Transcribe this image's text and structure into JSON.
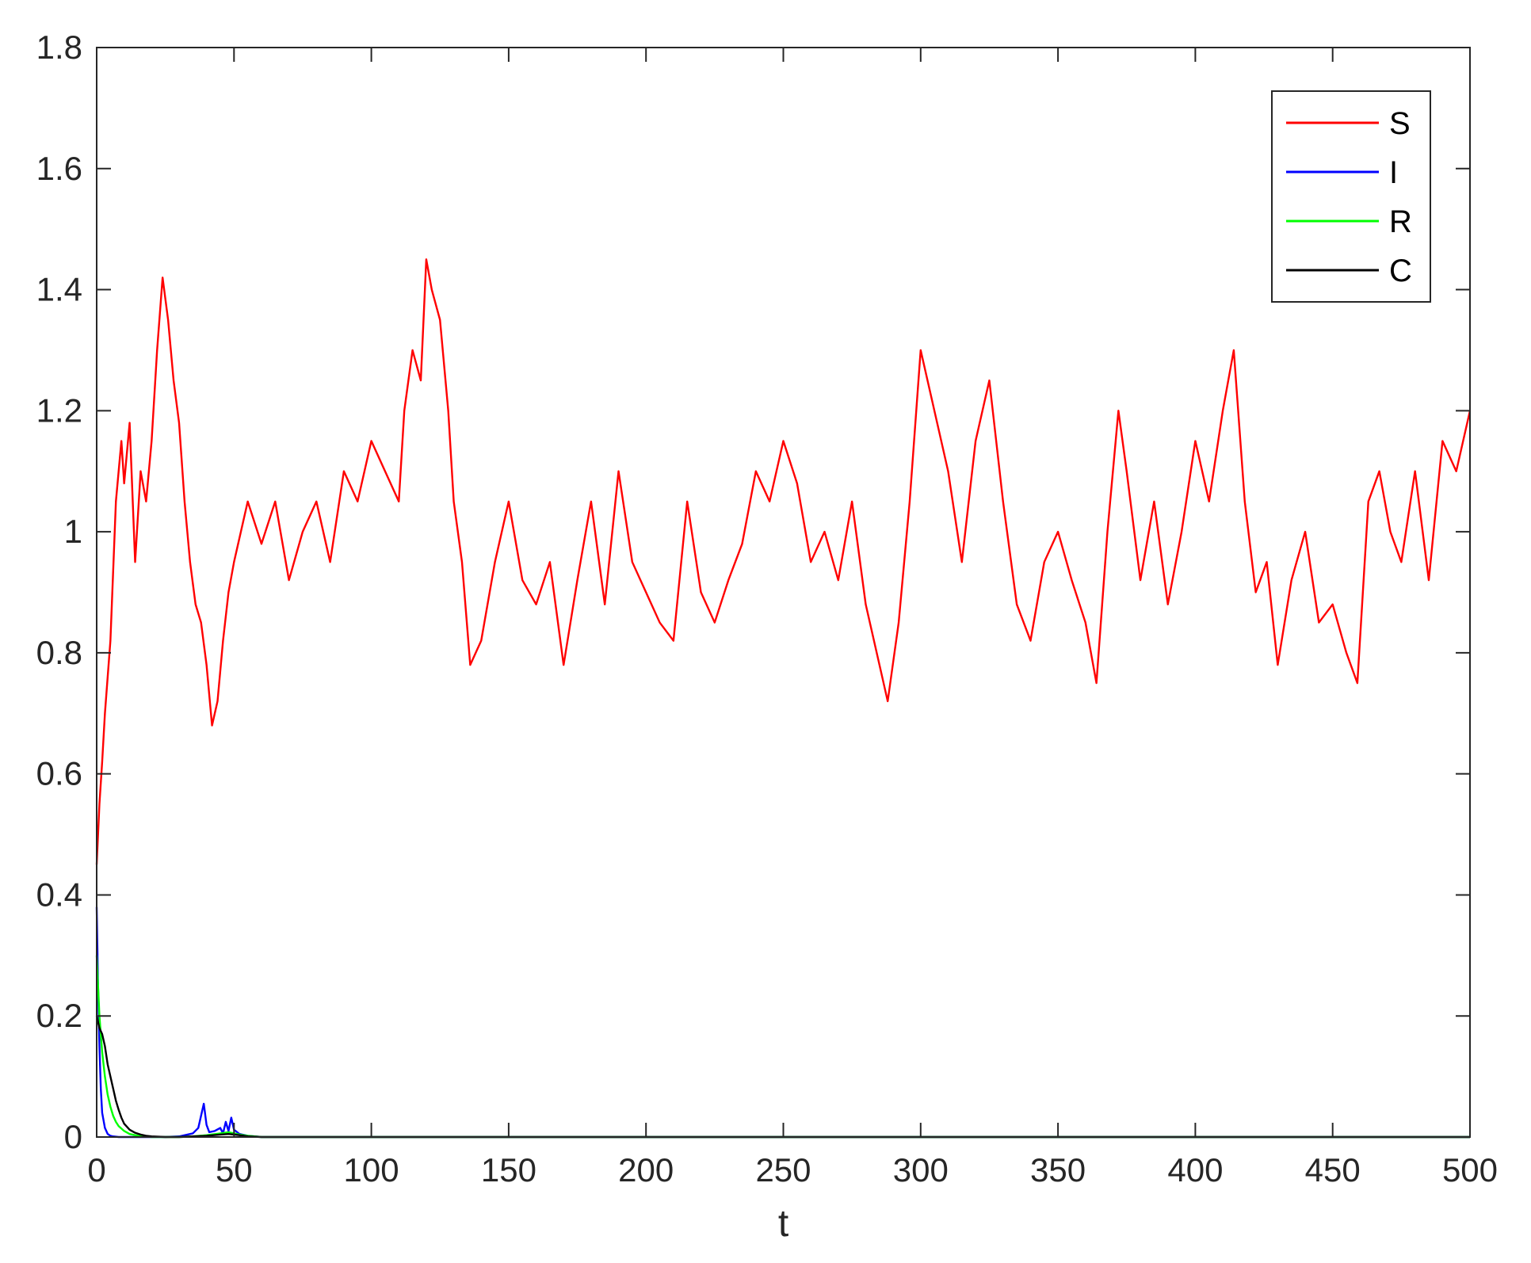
{
  "chart_data": {
    "type": "line",
    "title": "",
    "xlabel": "t",
    "ylabel": "",
    "xlim": [
      0,
      500
    ],
    "ylim": [
      0,
      1.8
    ],
    "xticks": [
      0,
      50,
      100,
      150,
      200,
      250,
      300,
      350,
      400,
      450,
      500
    ],
    "yticks": [
      0,
      0.2,
      0.4,
      0.6,
      0.8,
      1,
      1.2,
      1.4,
      1.6,
      1.8
    ],
    "xtick_labels": [
      "0",
      "50",
      "100",
      "150",
      "200",
      "250",
      "300",
      "350",
      "400",
      "450",
      "500"
    ],
    "ytick_labels": [
      "0",
      "0.2",
      "0.4",
      "0.6",
      "0.8",
      "1",
      "1.2",
      "1.4",
      "1.6",
      "1.8"
    ],
    "grid": false,
    "legend_position": "top-right",
    "series": [
      {
        "name": "S",
        "color": "#ff0000",
        "x": [
          0,
          1,
          2,
          3,
          5,
          7,
          9,
          10,
          12,
          14,
          16,
          18,
          20,
          22,
          24,
          26,
          28,
          30,
          32,
          34,
          36,
          38,
          40,
          42,
          44,
          46,
          48,
          50,
          55,
          60,
          65,
          70,
          75,
          80,
          85,
          90,
          95,
          100,
          105,
          110,
          112,
          115,
          118,
          120,
          122,
          125,
          128,
          130,
          133,
          136,
          140,
          145,
          150,
          155,
          160,
          165,
          170,
          175,
          180,
          185,
          190,
          195,
          200,
          205,
          210,
          215,
          220,
          225,
          230,
          235,
          240,
          245,
          250,
          255,
          260,
          265,
          270,
          275,
          280,
          285,
          288,
          292,
          296,
          300,
          305,
          310,
          315,
          320,
          325,
          330,
          335,
          340,
          345,
          350,
          355,
          360,
          364,
          368,
          372,
          375,
          380,
          385,
          390,
          395,
          400,
          405,
          410,
          414,
          418,
          422,
          426,
          430,
          435,
          440,
          445,
          450,
          455,
          459,
          463,
          467,
          471,
          475,
          480,
          485,
          490,
          495,
          500
        ],
        "y": [
          0.45,
          0.55,
          0.62,
          0.7,
          0.82,
          1.05,
          1.15,
          1.08,
          1.18,
          0.95,
          1.1,
          1.05,
          1.15,
          1.3,
          1.42,
          1.35,
          1.25,
          1.18,
          1.05,
          0.95,
          0.88,
          0.85,
          0.78,
          0.68,
          0.72,
          0.82,
          0.9,
          0.95,
          1.05,
          0.98,
          1.05,
          0.92,
          1.0,
          1.05,
          0.95,
          1.1,
          1.05,
          1.15,
          1.1,
          1.05,
          1.2,
          1.3,
          1.25,
          1.45,
          1.4,
          1.35,
          1.2,
          1.05,
          0.95,
          0.78,
          0.82,
          0.95,
          1.05,
          0.92,
          0.88,
          0.95,
          0.78,
          0.92,
          1.05,
          0.88,
          1.1,
          0.95,
          0.9,
          0.85,
          0.82,
          1.05,
          0.9,
          0.85,
          0.92,
          0.98,
          1.1,
          1.05,
          1.15,
          1.08,
          0.95,
          1.0,
          0.92,
          1.05,
          0.88,
          0.78,
          0.72,
          0.85,
          1.05,
          1.3,
          1.2,
          1.1,
          0.95,
          1.15,
          1.25,
          1.05,
          0.88,
          0.82,
          0.95,
          1.0,
          0.92,
          0.85,
          0.75,
          1.0,
          1.2,
          1.1,
          0.92,
          1.05,
          0.88,
          1.0,
          1.15,
          1.05,
          1.2,
          1.3,
          1.05,
          0.9,
          0.95,
          0.78,
          0.92,
          1.0,
          0.85,
          0.88,
          0.8,
          0.75,
          1.05,
          1.1,
          1.0,
          0.95,
          1.1,
          0.92,
          1.15,
          1.1,
          1.2
        ]
      },
      {
        "name": "I",
        "color": "#0000ff",
        "x": [
          0,
          0.5,
          1,
          1.5,
          2,
          3,
          4,
          5,
          6,
          8,
          10,
          15,
          20,
          25,
          30,
          35,
          37,
          39,
          40,
          41,
          43,
          45,
          46,
          47,
          48,
          49,
          50,
          52,
          55,
          60,
          100,
          200,
          300,
          400,
          500
        ],
        "y": [
          0.38,
          0.25,
          0.15,
          0.08,
          0.04,
          0.015,
          0.005,
          0.002,
          0.001,
          0.0,
          0.0,
          0.0,
          0.0,
          0.0,
          0.001,
          0.006,
          0.015,
          0.055,
          0.02,
          0.008,
          0.01,
          0.015,
          0.006,
          0.025,
          0.01,
          0.032,
          0.012,
          0.005,
          0.002,
          0.0,
          0.0,
          0.0,
          0.0,
          0.0,
          0.0
        ]
      },
      {
        "name": "R",
        "color": "#00ff00",
        "x": [
          0,
          0.5,
          1,
          2,
          3,
          4,
          5,
          6,
          7,
          8,
          10,
          12,
          15,
          20,
          25,
          30,
          35,
          40,
          45,
          48,
          50,
          52,
          55,
          60,
          100,
          200,
          300,
          400,
          500
        ],
        "y": [
          0.3,
          0.25,
          0.2,
          0.14,
          0.1,
          0.07,
          0.05,
          0.035,
          0.025,
          0.018,
          0.01,
          0.005,
          0.002,
          0.0,
          0.0,
          0.0,
          0.001,
          0.003,
          0.006,
          0.008,
          0.006,
          0.004,
          0.002,
          0.0,
          0.0,
          0.0,
          0.0,
          0.0,
          0.0
        ]
      },
      {
        "name": "C",
        "color": "#000000",
        "x": [
          0,
          1,
          2,
          3,
          4,
          5,
          6,
          7,
          8,
          9,
          10,
          12,
          14,
          16,
          18,
          20,
          25,
          30,
          35,
          40,
          45,
          48,
          50,
          52,
          55,
          60,
          100,
          200,
          300,
          400,
          500
        ],
        "y": [
          0.2,
          0.18,
          0.17,
          0.15,
          0.12,
          0.1,
          0.08,
          0.06,
          0.045,
          0.032,
          0.022,
          0.012,
          0.007,
          0.004,
          0.002,
          0.001,
          0.0,
          0.0,
          0.001,
          0.002,
          0.004,
          0.005,
          0.004,
          0.003,
          0.001,
          0.0,
          0.0,
          0.0,
          0.0,
          0.0,
          0.0
        ]
      }
    ]
  }
}
